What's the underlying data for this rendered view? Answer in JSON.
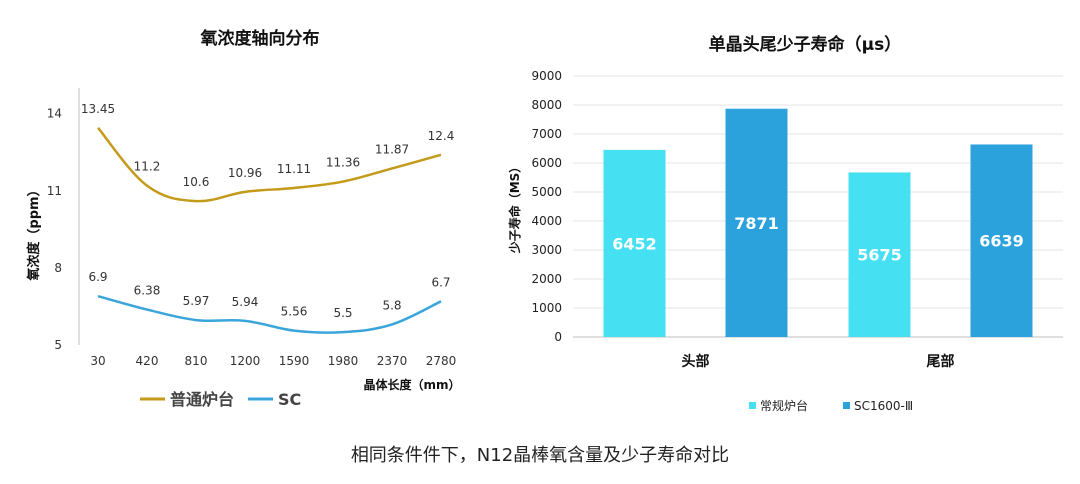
{
  "chart_data": [
    {
      "type": "line",
      "title": "氧浓度轴向分布",
      "xlabel": "晶体长度（mm）",
      "ylabel": "氧浓度（ppm）",
      "categories": [
        "30",
        "420",
        "810",
        "1200",
        "1590",
        "1980",
        "2370",
        "2780"
      ],
      "ylim": [
        5,
        15
      ],
      "yticks": [
        "5",
        "8",
        "11",
        "14"
      ],
      "ytick_values": [
        5,
        8,
        11,
        14
      ],
      "series": [
        {
          "name": "普通炉台",
          "color": "#c49a1a",
          "values": [
            13.45,
            11.2,
            10.6,
            10.96,
            11.11,
            11.36,
            11.87,
            12.4
          ],
          "labels": [
            "13.45",
            "11.2",
            "10.6",
            "10.96",
            "11.11",
            "11.36",
            "11.87",
            "12.4"
          ]
        },
        {
          "name": "SC",
          "color": "#3aa5db",
          "values": [
            6.9,
            6.38,
            5.97,
            5.94,
            5.56,
            5.5,
            5.8,
            6.7
          ],
          "labels": [
            "6.9",
            "6.38",
            "5.97",
            "5.94",
            "5.56",
            "5.5",
            "5.8",
            "6.7"
          ]
        }
      ],
      "legend": "bottom-left"
    },
    {
      "type": "bar",
      "title": "单晶头尾少子寿命（μs）",
      "xlabel": "",
      "ylabel": "少子寿命（MS）",
      "categories": [
        "头部",
        "尾部"
      ],
      "ylim": [
        0,
        9000
      ],
      "yticks": [
        "0",
        "1000",
        "2000",
        "3000",
        "4000",
        "5000",
        "6000",
        "7000",
        "8000",
        "9000"
      ],
      "ytick_values": [
        0,
        1000,
        2000,
        3000,
        4000,
        5000,
        6000,
        7000,
        8000,
        9000
      ],
      "series": [
        {
          "name": "常规炉台",
          "color": "#45e0f2",
          "values": [
            6452,
            5675
          ],
          "labels": [
            "6452",
            "5675"
          ]
        },
        {
          "name": "SC1600-Ⅲ",
          "color": "#2ba2dc",
          "values": [
            7871,
            6639
          ],
          "labels": [
            "7871",
            "6639"
          ]
        }
      ],
      "legend": "bottom"
    }
  ],
  "caption": "相同条件件下，N12晶棒氧含量及少子寿命对比"
}
